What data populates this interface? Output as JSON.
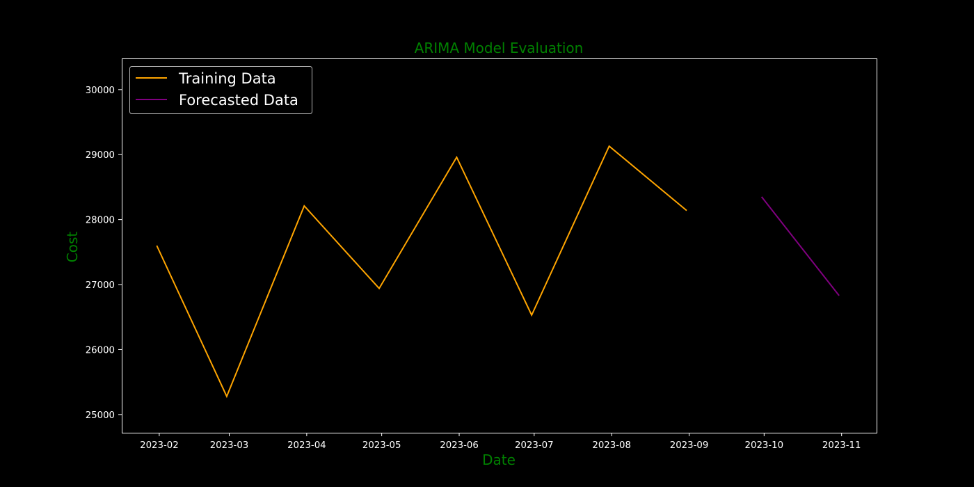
{
  "colors": {
    "background": "#000000",
    "axes": "#ffffff",
    "title": "#008000",
    "training": "#ffa500",
    "forecast": "#800080"
  },
  "chart_data": {
    "type": "line",
    "title": "ARIMA Model Evaluation",
    "xlabel": "Date",
    "ylabel": "Cost",
    "x_ticks": [
      "2023-02",
      "2023-03",
      "2023-04",
      "2023-05",
      "2023-06",
      "2023-07",
      "2023-08",
      "2023-09",
      "2023-10",
      "2023-11"
    ],
    "y_ticks": [
      25000,
      26000,
      27000,
      28000,
      29000,
      30000
    ],
    "xlim": [
      "2023-01-17",
      "2023-11-15"
    ],
    "ylim": [
      24720,
      30480
    ],
    "grid": false,
    "legend": "upper-left",
    "series": [
      {
        "name": "Training Data",
        "color": "#ffa500",
        "points": [
          {
            "x": "2023-01-31",
            "y": 27600
          },
          {
            "x": "2023-02-28",
            "y": 25280
          },
          {
            "x": "2023-03-31",
            "y": 28210
          },
          {
            "x": "2023-04-30",
            "y": 26940
          },
          {
            "x": "2023-05-31",
            "y": 28960
          },
          {
            "x": "2023-06-30",
            "y": 26530
          },
          {
            "x": "2023-07-31",
            "y": 29130
          },
          {
            "x": "2023-08-31",
            "y": 28140
          }
        ]
      },
      {
        "name": "Forecasted Data",
        "color": "#800080",
        "points": [
          {
            "x": "2023-09-30",
            "y": 28350
          },
          {
            "x": "2023-10-31",
            "y": 26830
          }
        ]
      }
    ]
  }
}
